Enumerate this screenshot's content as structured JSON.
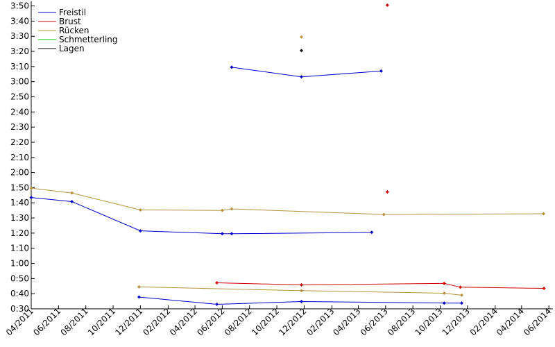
{
  "chart_data": {
    "type": "line",
    "title": "",
    "xlabel": "",
    "ylabel": "",
    "grid": false,
    "legend_placement": "top-left",
    "y_tick_labels": [
      "0:30",
      "0:40",
      "0:50",
      "1:00",
      "1:10",
      "1:20",
      "1:30",
      "1:40",
      "1:50",
      "2:00",
      "2:10",
      "2:20",
      "2:30",
      "2:40",
      "2:50",
      "3:00",
      "3:10",
      "3:20",
      "3:30",
      "3:40",
      "3:50"
    ],
    "x_tick_labels": [
      "04/2011",
      "06/2011",
      "08/2011",
      "10/2011",
      "12/2011",
      "02/2012",
      "04/2012",
      "06/2012",
      "08/2012",
      "10/2012",
      "12/2012",
      "02/2013",
      "04/2013",
      "06/2013",
      "08/2013",
      "10/2013",
      "12/2013",
      "02/2014",
      "04/2014",
      "06/2014"
    ],
    "xlim": [
      "2011-04-01",
      "2014-06-10"
    ],
    "ylim": [
      "0:30",
      "3:53"
    ],
    "series": [
      {
        "name": "Freistil",
        "color": "#0000cc",
        "groups": [
          {
            "x": [
              "2011-04-01",
              "2011-07-01",
              "2011-12-01",
              "2012-06-01",
              "2012-06-22",
              "2013-05-01"
            ],
            "y": [
              "1:43.5",
              "1:40.8",
              "1:21.5",
              "1:19.6",
              "1:19.6",
              "1:20.5"
            ]
          },
          {
            "x": [
              "2012-06-22",
              "2012-11-25",
              "2013-05-22"
            ],
            "y": [
              "3:09.5",
              "3:03.2",
              "3:07.0"
            ]
          },
          {
            "x": [
              "2011-11-28",
              "2012-05-20",
              "2012-11-25",
              "2013-10-10",
              "2013-11-18"
            ],
            "y": [
              "0:37.8",
              "0:33.0",
              "0:34.8",
              "0:33.8",
              "0:33.8"
            ]
          }
        ]
      },
      {
        "name": "Brust",
        "color": "#cc0000",
        "groups": [
          {
            "x": [
              "2012-05-20",
              "2012-11-25",
              "2013-10-10",
              "2013-11-15",
              "2014-05-21"
            ],
            "y": [
              "0:47.2",
              "0:45.8",
              "0:46.8",
              "0:44.3",
              "0:43.5"
            ]
          },
          {
            "x": [
              "2013-06-05"
            ],
            "y": [
              "3:50.5"
            ]
          },
          {
            "x": [
              "2013-06-05"
            ],
            "y": [
              "1:47.2"
            ]
          }
        ]
      },
      {
        "name": "Rücken",
        "color": "#b5913b",
        "groups": [
          {
            "x": [
              "2011-04-01",
              "2011-07-01",
              "2011-12-01",
              "2012-06-01",
              "2012-06-22",
              "2013-05-28",
              "2014-05-20"
            ],
            "y": [
              "1:49.7",
              "1:46.5",
              "1:35.3",
              "1:35.0",
              "1:36.0",
              "1:32.3",
              "1:32.8"
            ]
          },
          {
            "x": [
              "2011-11-28",
              "2012-11-25",
              "2013-10-10",
              "2013-11-18"
            ],
            "y": [
              "0:44.5",
              "0:42.0",
              "0:40.3",
              "0:39.0"
            ]
          },
          {
            "x": [
              "2012-11-25"
            ],
            "y": [
              "3:29.5"
            ]
          }
        ]
      },
      {
        "name": "Schmetterling",
        "color": "#00cc00",
        "groups": []
      },
      {
        "name": "Lagen",
        "color": "#000000",
        "groups": [
          {
            "x": [
              "2012-11-25"
            ],
            "y": [
              "3:20.5"
            ]
          }
        ]
      }
    ]
  }
}
